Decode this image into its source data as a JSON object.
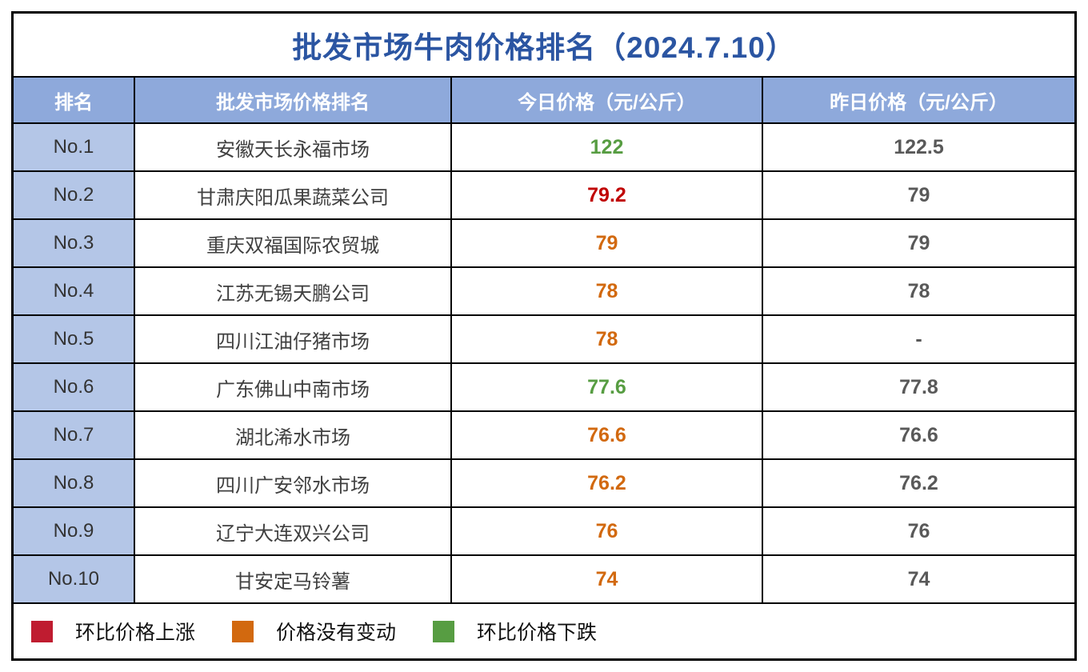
{
  "chart_data": {
    "type": "table",
    "title": "批发市场牛肉价格排名（2024.7.10）",
    "columns": [
      "排名",
      "批发市场价格排名",
      "今日价格（元/公斤）",
      "昨日价格（元/公斤）"
    ],
    "rows": [
      {
        "rank": "No.1",
        "market": "安徽天长永福市场",
        "today": "122",
        "yesterday": "122.5",
        "trend": "down"
      },
      {
        "rank": "No.2",
        "market": "甘肃庆阳瓜果蔬菜公司",
        "today": "79.2",
        "yesterday": "79",
        "trend": "up"
      },
      {
        "rank": "No.3",
        "market": "重庆双福国际农贸城",
        "today": "79",
        "yesterday": "79",
        "trend": "flat"
      },
      {
        "rank": "No.4",
        "market": "江苏无锡天鹏公司",
        "today": "78",
        "yesterday": "78",
        "trend": "flat"
      },
      {
        "rank": "No.5",
        "market": "四川江油仔猪市场",
        "today": "78",
        "yesterday": "-",
        "trend": "flat"
      },
      {
        "rank": "No.6",
        "market": "广东佛山中南市场",
        "today": "77.6",
        "yesterday": "77.8",
        "trend": "down"
      },
      {
        "rank": "No.7",
        "market": "湖北浠水市场",
        "today": "76.6",
        "yesterday": "76.6",
        "trend": "flat"
      },
      {
        "rank": "No.8",
        "market": "四川广安邻水市场",
        "today": "76.2",
        "yesterday": "76.2",
        "trend": "flat"
      },
      {
        "rank": "No.9",
        "market": "辽宁大连双兴公司",
        "today": "76",
        "yesterday": "76",
        "trend": "flat"
      },
      {
        "rank": "No.10",
        "market": "甘安定马铃薯",
        "today": "74",
        "yesterday": "74",
        "trend": "flat"
      }
    ],
    "legend": [
      {
        "label": "环比价格上涨",
        "color": "#bf1c30",
        "trend": "up"
      },
      {
        "label": "价格没有变动",
        "color": "#d2690f",
        "trend": "flat"
      },
      {
        "label": "环比价格下跌",
        "color": "#579d42",
        "trend": "down"
      }
    ],
    "layout": {
      "grid": true,
      "legend_position": "bottom"
    }
  },
  "colors": {
    "title_text": "#2b55a2",
    "header_bg": "#8ea9db",
    "rank_col_bg": "#b4c6e7",
    "price_up": "#c00000",
    "price_flat": "#d2690f",
    "price_down": "#579d42",
    "yesterday_text": "#595959",
    "border": "#000000"
  }
}
